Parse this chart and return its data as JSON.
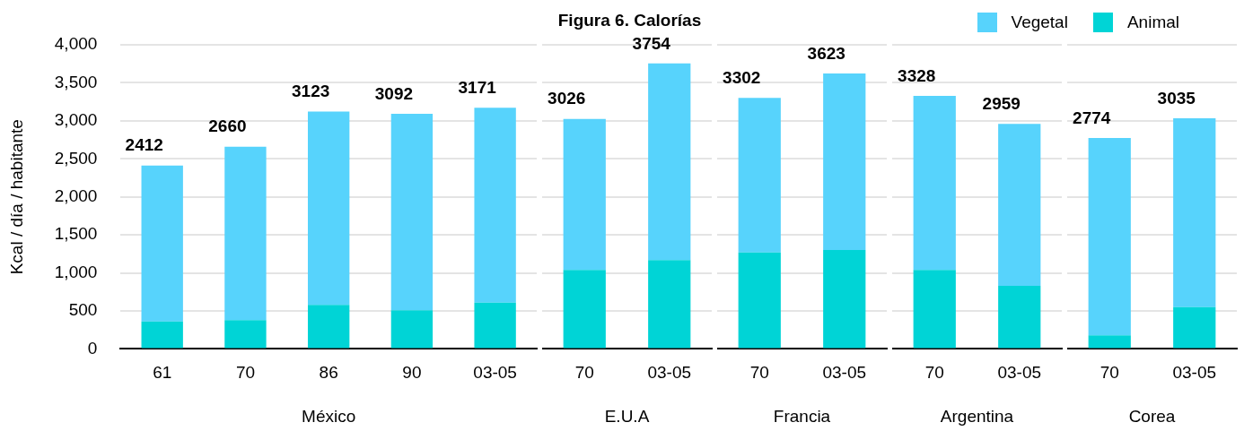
{
  "chart_data": [
    {
      "type": "bar",
      "ylabel": "Kcal / día / habitante",
      "xlabel": "México",
      "categories": [
        "61",
        "70",
        "86",
        "90",
        "03-05"
      ],
      "stacked": true,
      "grid": "y",
      "ylim": [
        0,
        4000
      ],
      "yticks": [
        0,
        500,
        {
          "value": 1000,
          "label": "1,000"
        },
        {
          "value": 1500,
          "label": "1,500"
        },
        {
          "value": 2000,
          "label": "2,000"
        },
        {
          "value": 2500,
          "label": "2,500"
        },
        {
          "value": 3000,
          "label": "3,000"
        },
        {
          "value": 3500,
          "label": "3,500"
        },
        {
          "value": 4000,
          "label": "4,000"
        }
      ],
      "series": [
        {
          "color": "#00d4d6",
          "values": [
            360,
            380,
            580,
            510,
            610
          ]
        },
        {
          "color": "#57d3fc",
          "values": [
            2052,
            2280,
            2543,
            2582,
            2561
          ]
        }
      ],
      "totals": [
        "2412",
        "2660",
        "3123",
        "3092",
        "3171"
      ]
    },
    {
      "type": "bar",
      "title": "Figura 6. Calorías",
      "xlabel": "E.U.A",
      "categories": [
        "70",
        "03-05"
      ],
      "stacked": true,
      "grid": "y",
      "tick_labels": "x",
      "ylim": [
        0,
        4000
      ],
      "yticks": [
        0,
        500,
        1000,
        1500,
        2000,
        2500,
        3000,
        3500,
        4000
      ],
      "series": [
        {
          "color": "#00d4d6",
          "values": [
            1040,
            1170
          ]
        },
        {
          "color": "#57d3fc",
          "values": [
            1986,
            2584
          ]
        }
      ],
      "totals": [
        "3026",
        "3754"
      ]
    },
    {
      "type": "bar",
      "xlabel": "Francia",
      "categories": [
        "70",
        "03-05"
      ],
      "stacked": true,
      "grid": "y",
      "tick_labels": "x",
      "ylim": [
        0,
        4000
      ],
      "yticks": [
        0,
        500,
        1000,
        1500,
        2000,
        2500,
        3000,
        3500,
        4000
      ],
      "series": [
        {
          "color": "#00d4d6",
          "values": [
            1270,
            1300
          ]
        },
        {
          "color": "#57d3fc",
          "values": [
            2032,
            2323
          ]
        }
      ],
      "totals": [
        "3302",
        "3623"
      ]
    },
    {
      "type": "bar",
      "xlabel": "Argentina",
      "categories": [
        "70",
        "03-05"
      ],
      "stacked": true,
      "grid": "y",
      "tick_labels": "x",
      "ylim": [
        0,
        4000
      ],
      "yticks": [
        0,
        500,
        1000,
        1500,
        2000,
        2500,
        3000,
        3500,
        4000
      ],
      "series": [
        {
          "color": "#00d4d6",
          "values": [
            1040,
            830
          ]
        },
        {
          "color": "#57d3fc",
          "values": [
            2288,
            2129
          ]
        }
      ],
      "totals": [
        "3328",
        "2959"
      ]
    },
    {
      "type": "bar",
      "xlabel": "Corea",
      "categories": [
        "70",
        "03-05"
      ],
      "stacked": true,
      "grid": "y",
      "tick_labels": "x",
      "legend": "top left",
      "ylim": [
        0,
        4000
      ],
      "yticks": [
        0,
        500,
        1000,
        1500,
        2000,
        2500,
        3000,
        3500,
        4000
      ],
      "series": [
        {
          "name": "Animal",
          "color": "#00d4d6",
          "values": [
            180,
            550
          ]
        },
        {
          "name": "Vegetal",
          "color": "#57d3fc",
          "values": [
            2594,
            2485
          ]
        }
      ],
      "totals": [
        "2774",
        "3035"
      ]
    }
  ]
}
